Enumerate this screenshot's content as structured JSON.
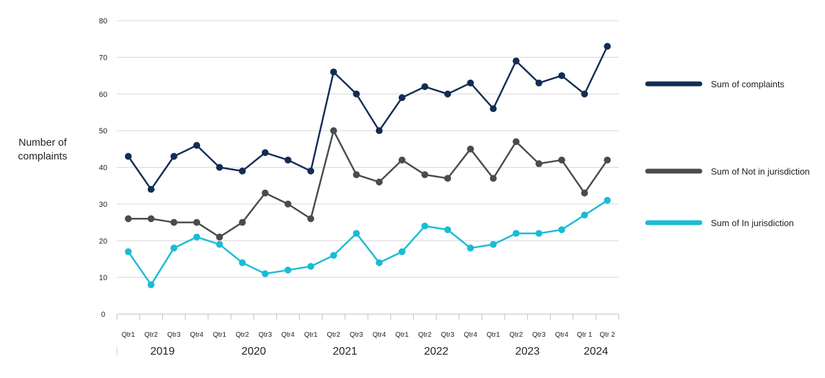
{
  "chart_data": {
    "type": "line",
    "title": "",
    "ylabel": "Number of complaints",
    "xlabel": "",
    "ylim": [
      0,
      80
    ],
    "yticks": [
      0,
      10,
      20,
      30,
      40,
      50,
      60,
      70,
      80
    ],
    "grid": true,
    "legend_position": "right",
    "categories": [
      "Qtr1",
      "Qtr2",
      "Qtr3",
      "Qtr4",
      "Qtr1",
      "Qtr2",
      "Qtr3",
      "Qtr4",
      "Qtr1",
      "Qtr2",
      "Qtr3",
      "Qtr4",
      "Qtr1",
      "Qtr2",
      "Qtr3",
      "Qtr4",
      "Qtr1",
      "Qtr2",
      "Qtr3",
      "Qtr4",
      "Qtr 1",
      "Qtr 2"
    ],
    "years": [
      {
        "label": "2019",
        "start": 0,
        "end": 3
      },
      {
        "label": "2020",
        "start": 4,
        "end": 7
      },
      {
        "label": "2021",
        "start": 8,
        "end": 11
      },
      {
        "label": "2022",
        "start": 12,
        "end": 15
      },
      {
        "label": "2023",
        "start": 16,
        "end": 19
      },
      {
        "label": "2024",
        "start": 20,
        "end": 21
      }
    ],
    "series": [
      {
        "name": "Sum of complaints",
        "color": "#112d54",
        "values": [
          43,
          34,
          43,
          46,
          40,
          39,
          44,
          42,
          39,
          66,
          60,
          50,
          59,
          62,
          60,
          63,
          56,
          69,
          63,
          65,
          60,
          73
        ]
      },
      {
        "name": "Sum of Not in jurisdiction",
        "color": "#4a4b4d",
        "values": [
          26,
          26,
          25,
          25,
          21,
          25,
          33,
          30,
          26,
          50,
          38,
          36,
          42,
          38,
          37,
          45,
          37,
          47,
          41,
          42,
          33,
          42
        ]
      },
      {
        "name": "Sum of In jurisdiction",
        "color": "#19bcd6",
        "values": [
          17,
          8,
          18,
          21,
          19,
          14,
          11,
          12,
          13,
          16,
          22,
          14,
          17,
          24,
          23,
          18,
          19,
          22,
          22,
          23,
          27,
          31
        ]
      }
    ]
  }
}
